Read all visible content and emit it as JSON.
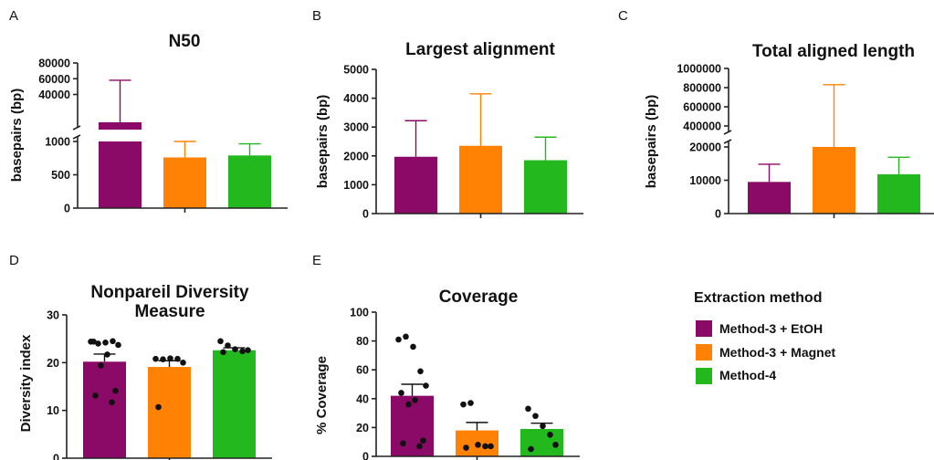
{
  "colors": {
    "Method-3 + EtOH": "#8b0a68",
    "Method-3 + Magnet": "#ff8205",
    "Method-4": "#22b81e"
  },
  "legend": {
    "title": "Extraction method",
    "items": [
      {
        "label": "Method-3 + EtOH",
        "color": "#8b0a68"
      },
      {
        "label": "Method-3 + Magnet",
        "color": "#ff8205"
      },
      {
        "label": "Method-4",
        "color": "#22b81e"
      }
    ]
  },
  "chart_data": [
    {
      "panel": "A",
      "type": "bar",
      "title": "N50",
      "ylabel": "basepairs (bp)",
      "axis_break": true,
      "y_lower": {
        "range": [
          0,
          1000
        ],
        "ticks": [
          "0",
          "500",
          "1000"
        ]
      },
      "y_upper": {
        "range": [
          0,
          80000
        ],
        "ticks": [
          "40000",
          "60000",
          "80000"
        ]
      },
      "categories": [
        "Method-3 + EtOH",
        "Method-3 + Magnet",
        "Method-4"
      ],
      "values": [
        20000,
        760,
        790
      ],
      "error_upper": [
        58000,
        1000,
        965
      ]
    },
    {
      "panel": "B",
      "type": "bar",
      "title": "Largest alignment",
      "ylabel": "basepairs (bp)",
      "ylim": [
        0,
        5000
      ],
      "ticks": [
        "0",
        "1000",
        "2000",
        "3000",
        "4000",
        "5000"
      ],
      "categories": [
        "Method-3 + EtOH",
        "Method-3 + Magnet",
        "Method-4"
      ],
      "values": [
        1970,
        2350,
        1850
      ],
      "error_upper": [
        3220,
        4150,
        2650
      ]
    },
    {
      "panel": "C",
      "type": "bar",
      "title": "Total aligned length",
      "ylabel": "basepairs (bp)",
      "axis_break": true,
      "y_lower": {
        "range": [
          0,
          20000
        ],
        "ticks": [
          "0",
          "10000",
          "20000"
        ]
      },
      "y_upper": {
        "range": [
          400000,
          1000000
        ],
        "ticks": [
          "400000",
          "600000",
          "800000",
          "1000000"
        ]
      },
      "categories": [
        "Method-3 + EtOH",
        "Method-3 + Magnet",
        "Method-4"
      ],
      "values": [
        9500,
        20000,
        11800
      ],
      "error_upper": [
        14800,
        830000,
        16900
      ]
    },
    {
      "panel": "D",
      "type": "bar",
      "title_lines": [
        "Nonpareil Diversity",
        "Measure"
      ],
      "ylabel": "Diversity index",
      "ylim": [
        0,
        30
      ],
      "ticks": [
        "0",
        "10",
        "20",
        "30"
      ],
      "categories": [
        "Method-3 + EtOH",
        "Method-3 + Magnet",
        "Method-4"
      ],
      "values": [
        20.2,
        19.1,
        22.6
      ],
      "error_upper": [
        21.8,
        20.4,
        23.1
      ],
      "points": [
        [
          24.4,
          24.0,
          24.2,
          24.5,
          23.7,
          24.4,
          21.7,
          19.4,
          14.1,
          13.1,
          11.7
        ],
        [
          20.8,
          20.7,
          20.9,
          20.8,
          20.0,
          10.7
        ],
        [
          24.5,
          23.6,
          22.8,
          22.4,
          22.6,
          22.2
        ]
      ]
    },
    {
      "panel": "E",
      "type": "bar",
      "title": "Coverage",
      "ylabel": "% Coverage",
      "ylim": [
        0,
        100
      ],
      "ticks": [
        "0",
        "20",
        "40",
        "60",
        "80",
        "100"
      ],
      "categories": [
        "Method-3 + EtOH",
        "Method-3 + Magnet",
        "Method-4"
      ],
      "values": [
        42,
        18,
        19
      ],
      "error_upper": [
        50,
        23.5,
        23
      ],
      "points": [
        [
          81,
          83,
          76,
          59,
          49,
          44,
          39,
          36,
          11,
          9,
          7
        ],
        [
          36,
          37,
          8,
          7,
          7,
          6
        ],
        [
          33,
          28,
          21,
          15,
          8,
          5
        ]
      ]
    }
  ]
}
